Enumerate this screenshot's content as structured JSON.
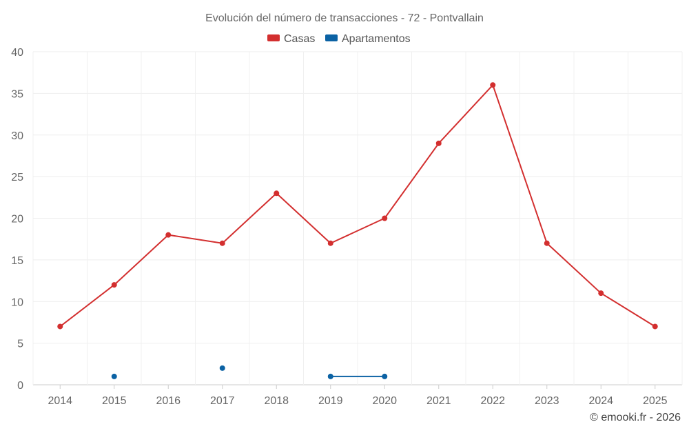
{
  "chart_data": {
    "type": "line",
    "title": "Evolución del número de transacciones - 72 - Pontvallain",
    "categories": [
      "2014",
      "2015",
      "2016",
      "2017",
      "2018",
      "2019",
      "2020",
      "2021",
      "2022",
      "2023",
      "2024",
      "2025"
    ],
    "ylim": [
      0,
      40
    ],
    "yticks": [
      0,
      5,
      10,
      15,
      20,
      25,
      30,
      35,
      40
    ],
    "grid": true,
    "legend_position": "top-center",
    "series": [
      {
        "name": "Casas",
        "color": "#d32f2f",
        "values": [
          7,
          12,
          18,
          17,
          23,
          17,
          20,
          29,
          36,
          17,
          11,
          7
        ]
      },
      {
        "name": "Apartamentos",
        "color": "#0b62a4",
        "values": [
          null,
          1,
          null,
          2,
          null,
          1,
          1,
          null,
          null,
          null,
          null,
          null
        ]
      }
    ]
  },
  "footer": {
    "credit": "© emooki.fr - 2026"
  }
}
